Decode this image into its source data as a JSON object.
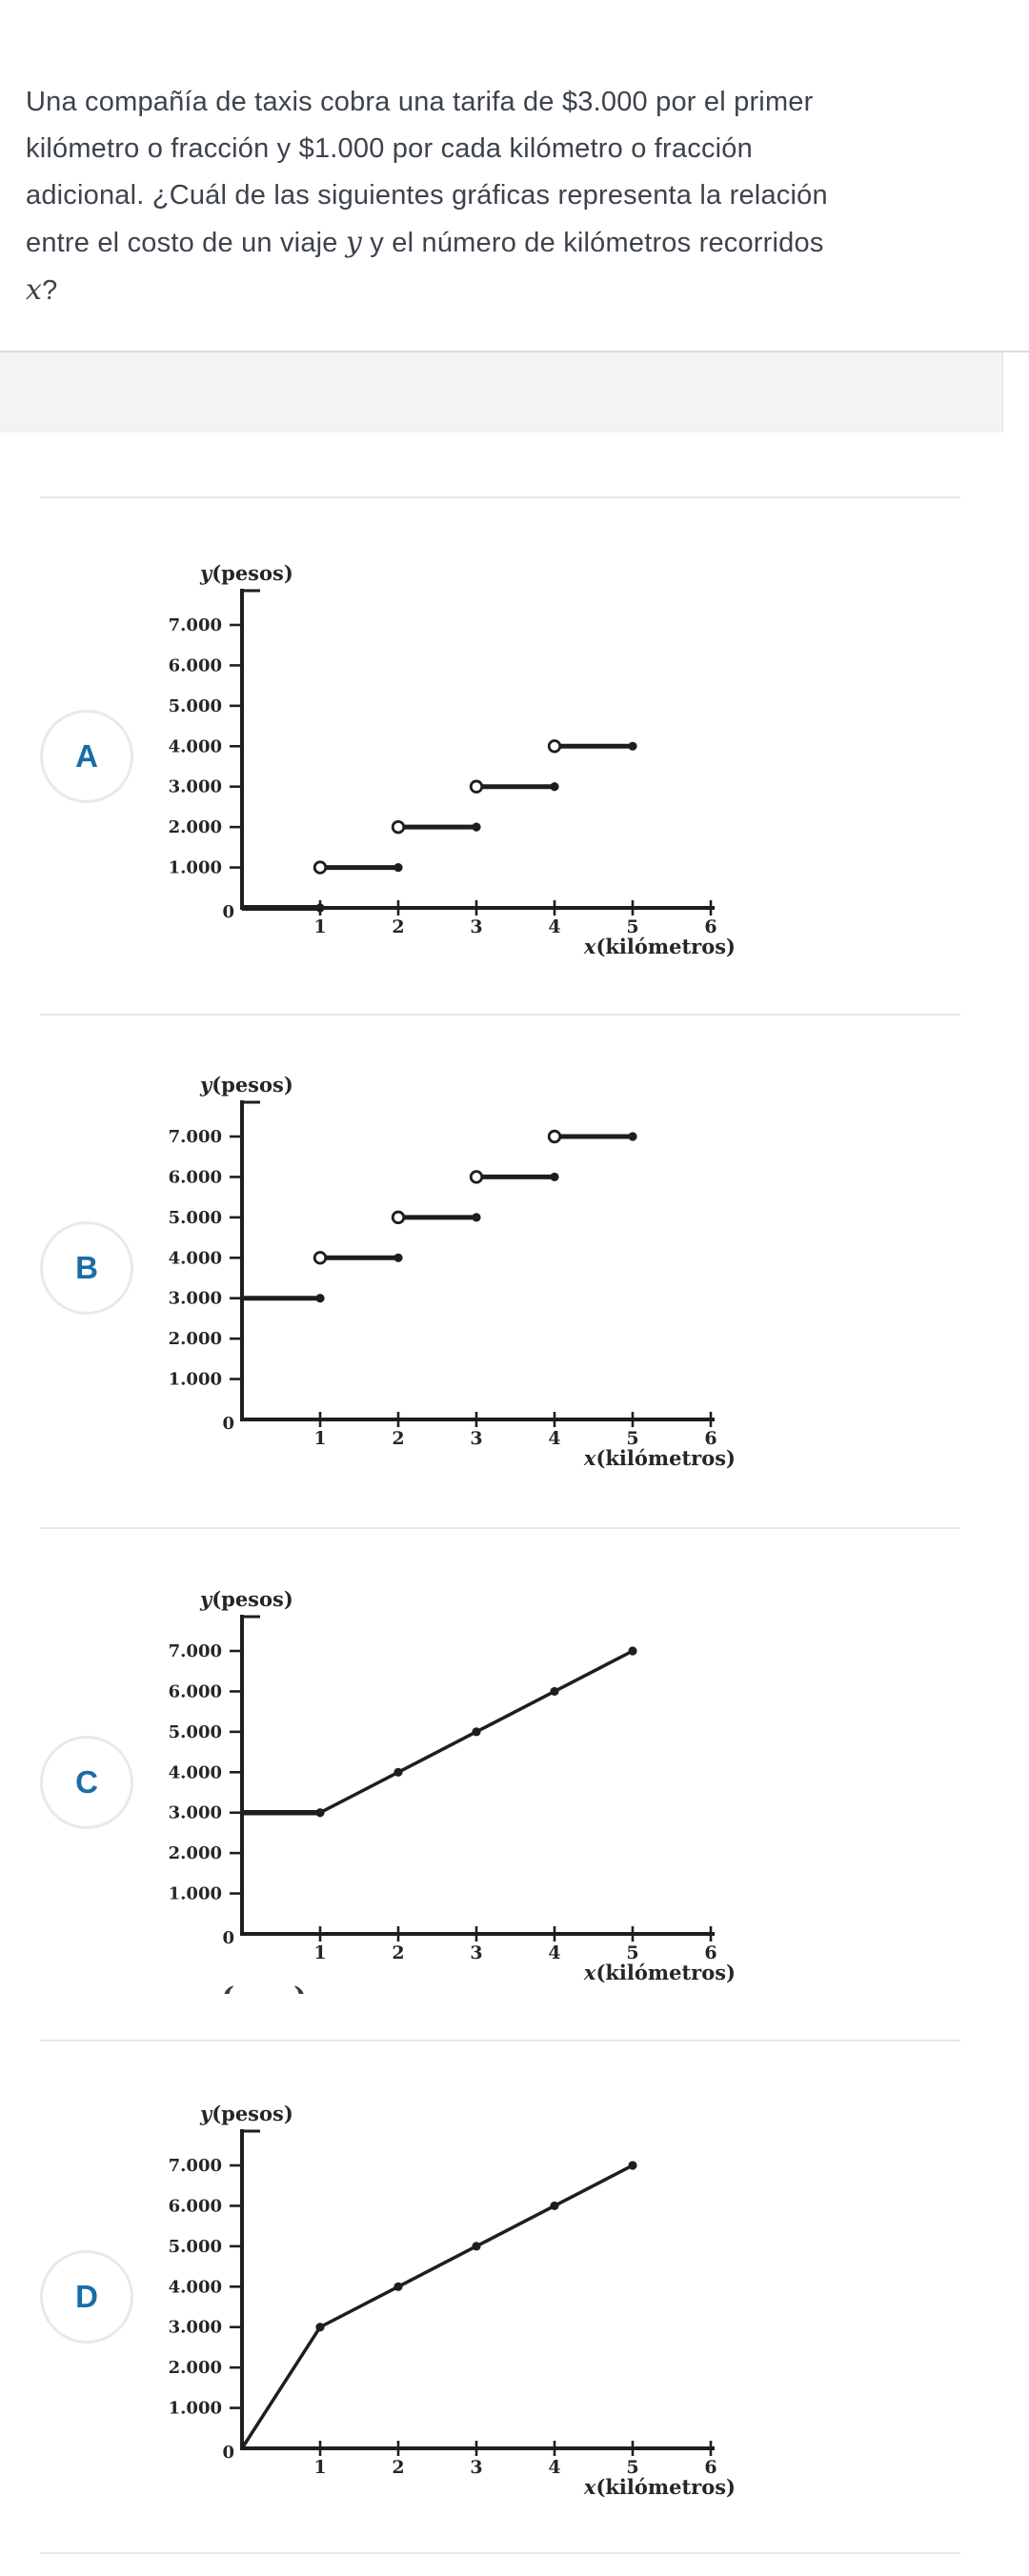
{
  "question": {
    "lines": [
      [
        {
          "t": "Una compañía de taxis cobra una tarifa de $3.000 por el primer"
        }
      ],
      [
        {
          "t": "kilómetro o fracción y $1.000 por cada kilómetro o fracción"
        }
      ],
      [
        {
          "t": "adicional. ¿Cuál de las siguientes gráficas representa la relación"
        }
      ],
      [
        {
          "t": "entre el costo de un viaje "
        },
        {
          "t": "y",
          "var": true
        },
        {
          "t": " y el número de kilómetros recorridos"
        }
      ],
      [
        {
          "t": "x",
          "var": true
        },
        {
          "t": "?"
        }
      ]
    ]
  },
  "artifact": {
    "left_mark": "(",
    "right_mark": ")"
  },
  "ink_color": "#1e1e1e",
  "option_letter_color": "#1a6da6",
  "chart_data": [
    {
      "option": "A",
      "type": "step",
      "title": "",
      "ylabel_var": "y",
      "ylabel_rest": "(pesos)",
      "xlabel_var": "x",
      "xlabel_rest": "(kilómetros)",
      "origin_label": "0",
      "xlim": [
        0,
        6
      ],
      "ylim": [
        0,
        7900
      ],
      "x_ticks": [
        {
          "v": 1,
          "label": "1"
        },
        {
          "v": 2,
          "label": "2"
        },
        {
          "v": 3,
          "label": "3"
        },
        {
          "v": 4,
          "label": "4"
        },
        {
          "v": 5,
          "label": "5"
        },
        {
          "v": 6,
          "label": "6"
        }
      ],
      "y_ticks": [
        {
          "v": 1000,
          "label": "1.000"
        },
        {
          "v": 2000,
          "label": "2.000"
        },
        {
          "v": 3000,
          "label": "3.000"
        },
        {
          "v": 4000,
          "label": "4.000"
        },
        {
          "v": 5000,
          "label": "5.000"
        },
        {
          "v": 6000,
          "label": "6.000"
        },
        {
          "v": 7000,
          "label": "7.000"
        }
      ],
      "steps": [
        {
          "x_start": 0,
          "x_end": 1,
          "y": 0,
          "open_start": false,
          "dot_end": true
        },
        {
          "x_start": 1,
          "x_end": 2,
          "y": 1000,
          "open_start": true,
          "dot_end": true
        },
        {
          "x_start": 2,
          "x_end": 3,
          "y": 2000,
          "open_start": true,
          "dot_end": true
        },
        {
          "x_start": 3,
          "x_end": 4,
          "y": 3000,
          "open_start": true,
          "dot_end": true
        },
        {
          "x_start": 4,
          "x_end": 5,
          "y": 4000,
          "open_start": true,
          "dot_end": true
        }
      ]
    },
    {
      "option": "B",
      "type": "step",
      "title": "",
      "ylabel_var": "y",
      "ylabel_rest": "(pesos)",
      "xlabel_var": "x",
      "xlabel_rest": "(kilómetros)",
      "origin_label": "0",
      "xlim": [
        0,
        6
      ],
      "ylim": [
        0,
        7900
      ],
      "x_ticks": [
        {
          "v": 1,
          "label": "1"
        },
        {
          "v": 2,
          "label": "2"
        },
        {
          "v": 3,
          "label": "3"
        },
        {
          "v": 4,
          "label": "4"
        },
        {
          "v": 5,
          "label": "5"
        },
        {
          "v": 6,
          "label": "6"
        }
      ],
      "y_ticks": [
        {
          "v": 1000,
          "label": "1.000"
        },
        {
          "v": 2000,
          "label": "2.000"
        },
        {
          "v": 3000,
          "label": "3.000"
        },
        {
          "v": 4000,
          "label": "4.000"
        },
        {
          "v": 5000,
          "label": "5.000"
        },
        {
          "v": 6000,
          "label": "6.000"
        },
        {
          "v": 7000,
          "label": "7.000"
        }
      ],
      "steps": [
        {
          "x_start": 0,
          "x_end": 1,
          "y": 3000,
          "open_start": false,
          "dot_end": true
        },
        {
          "x_start": 1,
          "x_end": 2,
          "y": 4000,
          "open_start": true,
          "dot_end": true
        },
        {
          "x_start": 2,
          "x_end": 3,
          "y": 5000,
          "open_start": true,
          "dot_end": true
        },
        {
          "x_start": 3,
          "x_end": 4,
          "y": 6000,
          "open_start": true,
          "dot_end": true
        },
        {
          "x_start": 4,
          "x_end": 5,
          "y": 7000,
          "open_start": true,
          "dot_end": true
        }
      ]
    },
    {
      "option": "C",
      "type": "line",
      "title": "",
      "ylabel_var": "y",
      "ylabel_rest": "(pesos)",
      "xlabel_var": "x",
      "xlabel_rest": "(kilómetros)",
      "origin_label": "0",
      "xlim": [
        0,
        6
      ],
      "ylim": [
        0,
        7900
      ],
      "x_ticks": [
        {
          "v": 1,
          "label": "1"
        },
        {
          "v": 2,
          "label": "2"
        },
        {
          "v": 3,
          "label": "3"
        },
        {
          "v": 4,
          "label": "4"
        },
        {
          "v": 5,
          "label": "5"
        },
        {
          "v": 6,
          "label": "6"
        }
      ],
      "y_ticks": [
        {
          "v": 1000,
          "label": "1.000"
        },
        {
          "v": 2000,
          "label": "2.000"
        },
        {
          "v": 3000,
          "label": "3.000"
        },
        {
          "v": 4000,
          "label": "4.000"
        },
        {
          "v": 5000,
          "label": "5.000"
        },
        {
          "v": 6000,
          "label": "6.000"
        },
        {
          "v": 7000,
          "label": "7.000"
        }
      ],
      "flat_segment": {
        "x_start": 0,
        "x_end": 1,
        "y": 3000
      },
      "points": [
        [
          1,
          3000
        ],
        [
          2,
          4000
        ],
        [
          3,
          5000
        ],
        [
          4,
          6000
        ],
        [
          5,
          7000
        ]
      ],
      "point_markers": [
        [
          1,
          3000
        ],
        [
          2,
          4000
        ],
        [
          3,
          5000
        ],
        [
          4,
          6000
        ],
        [
          5,
          7000
        ]
      ]
    },
    {
      "option": "D",
      "type": "line",
      "title": "",
      "ylabel_var": "y",
      "ylabel_rest": "(pesos)",
      "xlabel_var": "x",
      "xlabel_rest": "(kilómetros)",
      "origin_label": "0",
      "xlim": [
        0,
        6
      ],
      "ylim": [
        0,
        7900
      ],
      "x_ticks": [
        {
          "v": 1,
          "label": "1"
        },
        {
          "v": 2,
          "label": "2"
        },
        {
          "v": 3,
          "label": "3"
        },
        {
          "v": 4,
          "label": "4"
        },
        {
          "v": 5,
          "label": "5"
        },
        {
          "v": 6,
          "label": "6"
        }
      ],
      "y_ticks": [
        {
          "v": 1000,
          "label": "1.000"
        },
        {
          "v": 2000,
          "label": "2.000"
        },
        {
          "v": 3000,
          "label": "3.000"
        },
        {
          "v": 4000,
          "label": "4.000"
        },
        {
          "v": 5000,
          "label": "5.000"
        },
        {
          "v": 6000,
          "label": "6.000"
        },
        {
          "v": 7000,
          "label": "7.000"
        }
      ],
      "points": [
        [
          0,
          0
        ],
        [
          1,
          3000
        ],
        [
          2,
          4000
        ],
        [
          3,
          5000
        ],
        [
          4,
          6000
        ],
        [
          5,
          7000
        ]
      ],
      "point_markers": [
        [
          1,
          3000
        ],
        [
          2,
          4000
        ],
        [
          3,
          5000
        ],
        [
          4,
          6000
        ],
        [
          5,
          7000
        ]
      ]
    }
  ]
}
